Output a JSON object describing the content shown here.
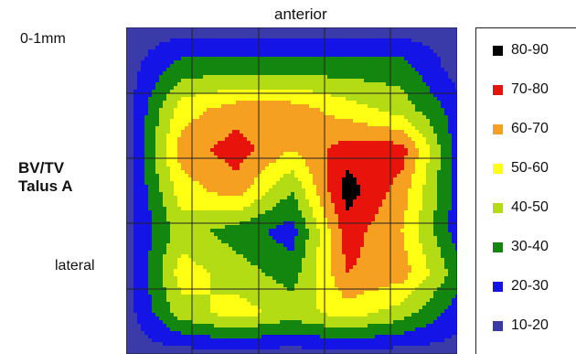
{
  "labels": {
    "anterior": "anterior",
    "depth": "0-1mm",
    "param_line1": "BV/TV",
    "param_line2": "Talus A",
    "lateral": "lateral"
  },
  "chart_data": {
    "type": "heatmap",
    "title": "",
    "grid": true,
    "legend_position": "right",
    "levels": [
      {
        "range": "80-90",
        "min": 80,
        "max": 90,
        "color": "#000000"
      },
      {
        "range": "70-80",
        "min": 70,
        "max": 80,
        "color": "#e8140c"
      },
      {
        "range": "60-70",
        "min": 60,
        "max": 70,
        "color": "#f5a020"
      },
      {
        "range": "50-60",
        "min": 50,
        "max": 60,
        "color": "#ffff14"
      },
      {
        "range": "40-50",
        "min": 40,
        "max": 50,
        "color": "#b4dc14"
      },
      {
        "range": "30-40",
        "min": 30,
        "max": 40,
        "color": "#12860f"
      },
      {
        "range": "20-30",
        "min": 20,
        "max": 30,
        "color": "#1414e6"
      },
      {
        "range": "10-20",
        "min": 10,
        "max": 20,
        "color": "#3a3aa8"
      }
    ],
    "values": [
      [
        15,
        15,
        15,
        15,
        15,
        15,
        15
      ],
      [
        15,
        35,
        35,
        35,
        35,
        35,
        15
      ],
      [
        15,
        55,
        65,
        65,
        55,
        45,
        25
      ],
      [
        15,
        65,
        75,
        60,
        75,
        75,
        25
      ],
      [
        15,
        55,
        65,
        40,
        85,
        65,
        25
      ],
      [
        15,
        45,
        35,
        25,
        75,
        60,
        25
      ],
      [
        15,
        55,
        45,
        35,
        70,
        65,
        35
      ],
      [
        15,
        45,
        55,
        45,
        55,
        45,
        25
      ],
      [
        15,
        15,
        15,
        15,
        15,
        15,
        15
      ]
    ]
  }
}
